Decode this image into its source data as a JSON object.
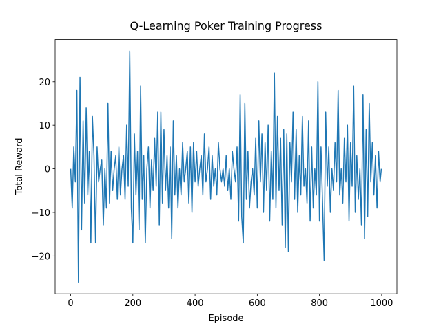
{
  "chart_data": {
    "type": "line",
    "title": "Q-Learning Poker Training Progress",
    "xlabel": "Episode",
    "ylabel": "Total Reward",
    "color": "#1f77b4",
    "x": [
      0,
      5,
      10,
      15,
      20,
      25,
      30,
      35,
      40,
      45,
      50,
      55,
      60,
      65,
      70,
      75,
      80,
      85,
      90,
      95,
      100,
      105,
      110,
      115,
      120,
      125,
      130,
      135,
      140,
      145,
      150,
      155,
      160,
      165,
      170,
      175,
      180,
      185,
      190,
      195,
      200,
      205,
      210,
      215,
      220,
      225,
      230,
      235,
      240,
      245,
      250,
      255,
      260,
      265,
      270,
      275,
      280,
      285,
      290,
      295,
      300,
      305,
      310,
      315,
      320,
      325,
      330,
      335,
      340,
      345,
      350,
      355,
      360,
      365,
      370,
      375,
      380,
      385,
      390,
      395,
      400,
      405,
      410,
      415,
      420,
      425,
      430,
      435,
      440,
      445,
      450,
      455,
      460,
      465,
      470,
      475,
      480,
      485,
      490,
      495,
      500,
      505,
      510,
      515,
      520,
      525,
      530,
      535,
      540,
      545,
      550,
      555,
      560,
      565,
      570,
      575,
      580,
      585,
      590,
      595,
      600,
      605,
      610,
      615,
      620,
      625,
      630,
      635,
      640,
      645,
      650,
      655,
      660,
      665,
      670,
      675,
      680,
      685,
      690,
      695,
      700,
      705,
      710,
      715,
      720,
      725,
      730,
      735,
      740,
      745,
      750,
      755,
      760,
      765,
      770,
      775,
      780,
      785,
      790,
      795,
      800,
      805,
      810,
      815,
      820,
      825,
      830,
      835,
      840,
      845,
      850,
      855,
      860,
      865,
      870,
      875,
      880,
      885,
      890,
      895,
      900,
      905,
      910,
      915,
      920,
      925,
      930,
      935,
      940,
      945,
      950,
      955,
      960,
      965,
      970,
      975,
      980,
      985,
      990,
      995,
      999
    ],
    "values": [
      0,
      -9,
      5,
      -3,
      18,
      -26,
      21,
      -14,
      11,
      -8,
      14,
      -6,
      4,
      -17,
      12,
      3,
      -17,
      5,
      -3,
      0,
      2,
      -13,
      0,
      -9,
      15,
      -8,
      4,
      -5,
      0,
      3,
      -7,
      5,
      -6,
      0,
      3,
      -7,
      10,
      -4,
      27,
      -9,
      -17,
      8,
      -6,
      4,
      -14,
      19,
      -7,
      3,
      -17,
      0,
      5,
      -9,
      2,
      -5,
      7,
      -4,
      13,
      -13,
      13,
      -8,
      9,
      -5,
      3,
      -9,
      5,
      -16,
      11,
      -6,
      3,
      -9,
      0,
      -6,
      6,
      -3,
      0,
      4,
      -8,
      5,
      -10,
      6,
      -3,
      4,
      -4,
      0,
      3,
      -6,
      8,
      -3,
      0,
      5,
      -7,
      3,
      -4,
      0,
      -6,
      6,
      0,
      -3,
      0,
      -4,
      3,
      -5,
      0,
      -7,
      4,
      0,
      -3,
      5,
      -12,
      17,
      -11,
      -17,
      15,
      -7,
      4,
      -9,
      -3,
      0,
      -6,
      7,
      -9,
      11,
      -3,
      8,
      -10,
      6,
      -5,
      10,
      -12,
      4,
      -7,
      22,
      -9,
      12,
      -5,
      7,
      -13,
      9,
      -18,
      8,
      -19,
      6,
      -3,
      13,
      -7,
      9,
      -10,
      3,
      -6,
      12,
      -4,
      0,
      -8,
      11,
      -12,
      5,
      -9,
      0,
      -6,
      20,
      -12,
      5,
      -8,
      -21,
      13,
      -4,
      5,
      -10,
      0,
      -5,
      6,
      -3,
      18,
      -6,
      0,
      -8,
      7,
      -3,
      10,
      -12,
      6,
      -4,
      19,
      -10,
      3,
      -7,
      0,
      -13,
      17,
      -16,
      9,
      -11,
      15,
      -3,
      6,
      -6,
      3,
      -9,
      4,
      -3,
      0
    ],
    "xlim": [
      -49.95,
      1048.95
    ],
    "ylim": [
      -28.65,
      29.65
    ],
    "xticks": [
      0,
      200,
      400,
      600,
      800,
      1000
    ],
    "yticks": [
      {
        "value": -20,
        "label": "−20"
      },
      {
        "value": -10,
        "label": "−10"
      },
      0,
      10,
      20
    ]
  }
}
